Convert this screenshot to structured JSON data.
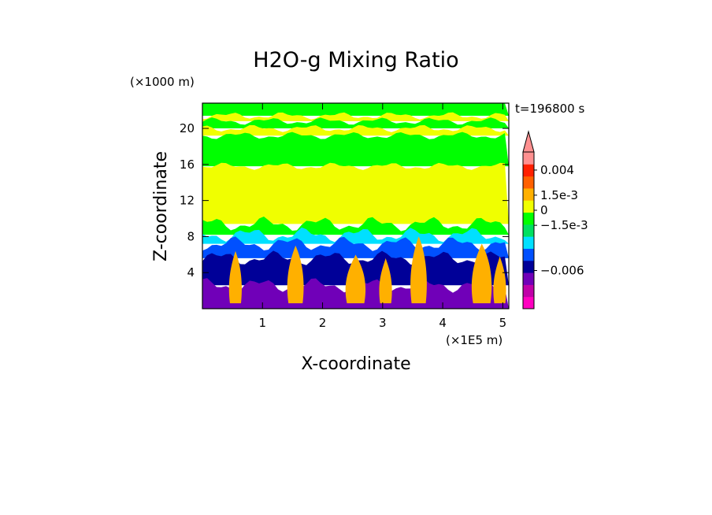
{
  "chart_data": {
    "type": "heatmap",
    "title": "H2O-g Mixing Ratio",
    "xlabel": "X-coordinate",
    "ylabel": "Z-coordinate",
    "x_unit": "(×1E5 m)",
    "y_unit": "(×1000 m)",
    "time_label": "t=196800 s",
    "xlim": [
      0,
      5.1
    ],
    "ylim": [
      0,
      22.8
    ],
    "x_ticks": [
      1,
      2,
      3,
      4,
      5
    ],
    "x_tick_labels": [
      "1",
      "2",
      "3",
      "4",
      "5"
    ],
    "y_ticks": [
      4,
      8,
      12,
      16,
      20
    ],
    "y_tick_labels": [
      "4",
      "8",
      "12",
      "16",
      "20"
    ],
    "colorbar": {
      "labels": [
        {
          "text": "0.004",
          "value": 0.004
        },
        {
          "text": "1.5e-3",
          "value": 0.0015
        },
        {
          "text": "0",
          "value": 0
        },
        {
          "text": "−1.5e-3",
          "value": -0.0015
        },
        {
          "text": "−0.006",
          "value": -0.006
        }
      ],
      "levels": [
        {
          "color": "#ff00c0"
        },
        {
          "color": "#c000a8"
        },
        {
          "color": "#7000b8"
        },
        {
          "color": "#000098"
        },
        {
          "color": "#0050ff"
        },
        {
          "color": "#00e0ff"
        },
        {
          "color": "#00e060"
        },
        {
          "color": "#00ff00"
        },
        {
          "color": "#f0ff00"
        },
        {
          "color": "#ffb000"
        },
        {
          "color": "#ff6000"
        },
        {
          "color": "#ff2000"
        },
        {
          "color": "#ff9090"
        }
      ],
      "extend": "max"
    },
    "field_bands": [
      {
        "z_bottom": 21.4,
        "z_top": 22.8,
        "color": "#00ff00"
      },
      {
        "z_bottom": 20.8,
        "z_top": 21.4,
        "color": "#f0ff00"
      },
      {
        "z_bottom": 20.0,
        "z_top": 20.8,
        "color": "#00ff00"
      },
      {
        "z_bottom": 19.2,
        "z_top": 20.0,
        "color": "#f0ff00"
      },
      {
        "z_bottom": 15.8,
        "z_top": 19.2,
        "color": "#00ff00"
      },
      {
        "z_bottom": 9.4,
        "z_top": 15.8,
        "color": "#f0ff00"
      },
      {
        "z_bottom": 8.2,
        "z_top": 9.4,
        "color": "#00ff00"
      },
      {
        "z_bottom": 7.2,
        "z_top": 8.2,
        "color": "#00e0ff"
      },
      {
        "z_bottom": 5.6,
        "z_top": 7.2,
        "color": "#0050ff"
      },
      {
        "z_bottom": 2.6,
        "z_top": 5.6,
        "color": "#000098"
      },
      {
        "z_bottom": 0.0,
        "z_top": 2.6,
        "color": "#7000b8"
      }
    ],
    "plumes": [
      {
        "x": 0.55,
        "z_top": 6.4,
        "color": "#ffb000"
      },
      {
        "x": 1.55,
        "z_top": 7.0,
        "color": "#ffb000"
      },
      {
        "x": 2.55,
        "z_top": 6.0,
        "color": "#ffb000"
      },
      {
        "x": 3.05,
        "z_top": 5.6,
        "color": "#ffb000"
      },
      {
        "x": 3.6,
        "z_top": 8.0,
        "color": "#ffb000"
      },
      {
        "x": 4.65,
        "z_top": 7.2,
        "color": "#ffb000"
      },
      {
        "x": 4.95,
        "z_top": 5.8,
        "color": "#ffb000"
      }
    ],
    "grid": false,
    "legend": "right"
  }
}
